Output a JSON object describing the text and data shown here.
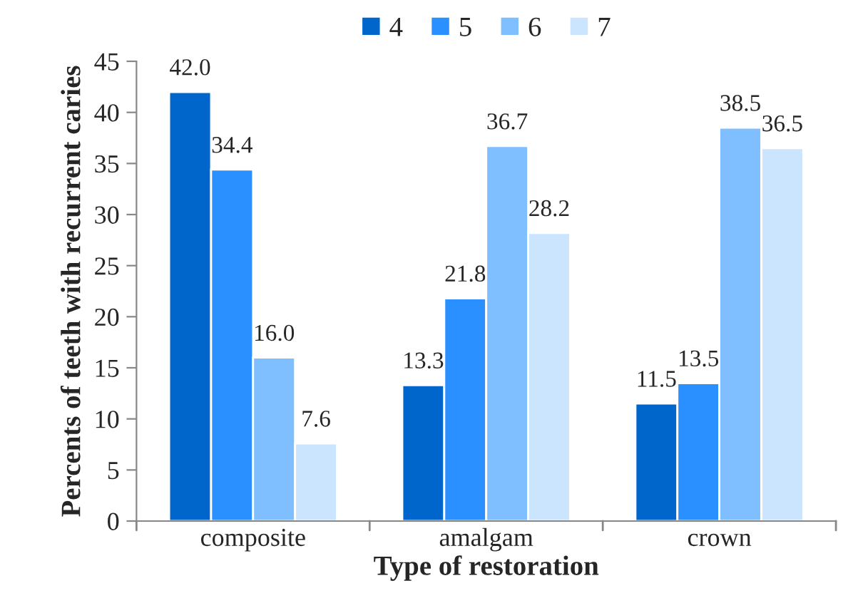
{
  "chart_data": {
    "type": "bar",
    "xlabel": "Type of restoration",
    "ylabel": "Percents of teeth with recurrent caries",
    "categories": [
      "composite",
      "amalgam",
      "crown"
    ],
    "series": [
      {
        "name": "4",
        "color": "#0066cc",
        "values": [
          42.0,
          13.3,
          11.5
        ],
        "value_labels": [
          "42.0",
          "13.3",
          "11.5"
        ]
      },
      {
        "name": "5",
        "color": "#2a8fff",
        "values": [
          34.4,
          21.8,
          13.5
        ],
        "value_labels": [
          "34.4",
          "21.8",
          "13.5"
        ]
      },
      {
        "name": "6",
        "color": "#7fbfff",
        "values": [
          16.0,
          36.7,
          38.5
        ],
        "value_labels": [
          "16.0",
          "36.7",
          "38.5"
        ]
      },
      {
        "name": "7",
        "color": "#cce5ff",
        "values": [
          7.6,
          28.2,
          36.5
        ],
        "value_labels": [
          "7.6",
          "28.2",
          "36.5"
        ]
      }
    ],
    "ylim": [
      0,
      45
    ],
    "yticks": [
      0,
      5,
      10,
      15,
      20,
      25,
      30,
      35,
      40,
      45
    ],
    "grid": false,
    "legend": "top"
  }
}
